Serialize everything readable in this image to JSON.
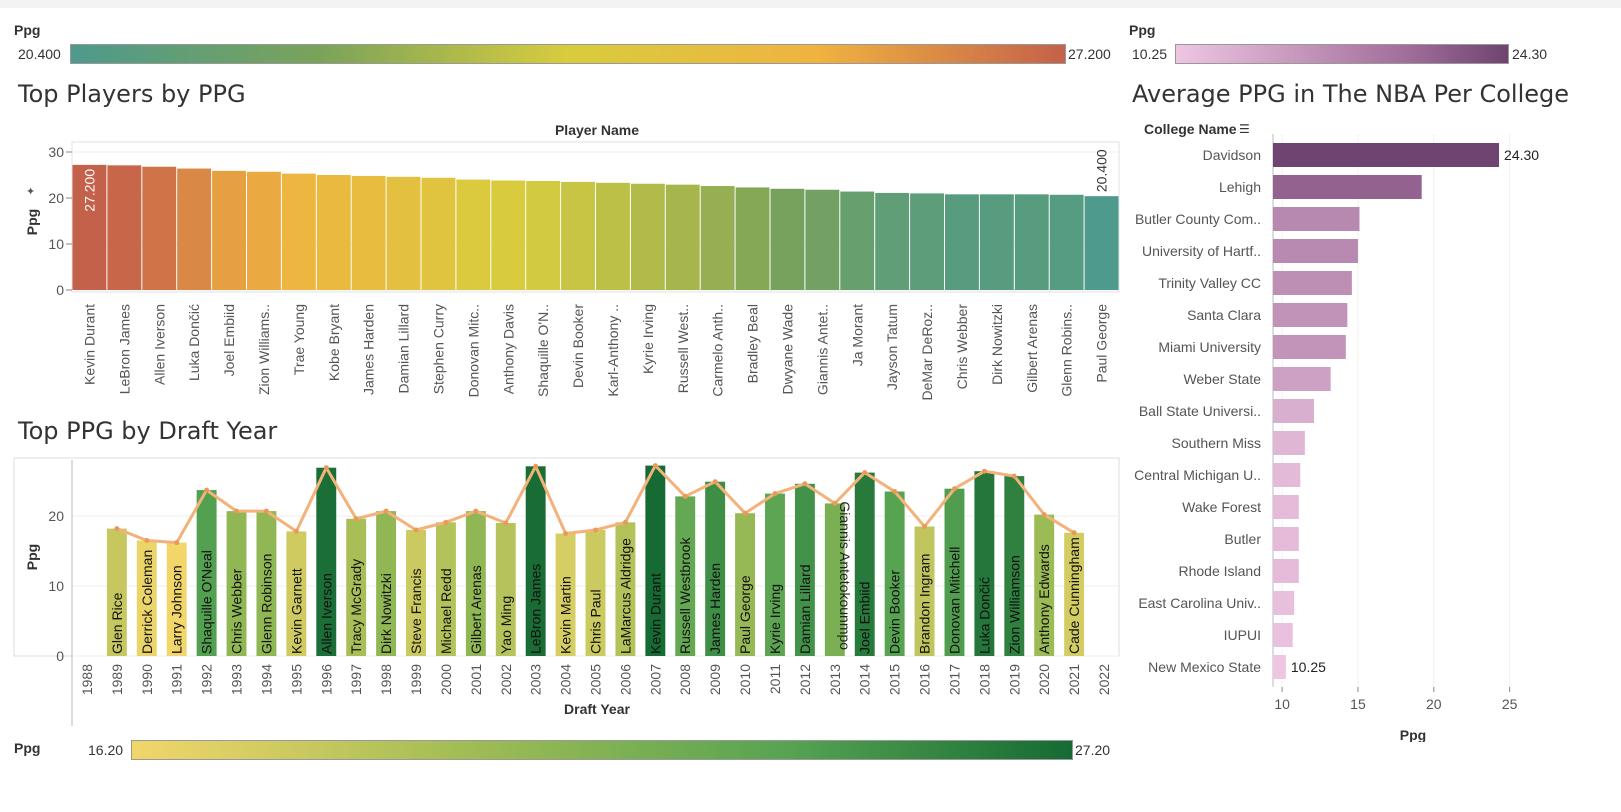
{
  "legends": {
    "players": {
      "label": "Ppg",
      "min": "20.400",
      "max": "27.200"
    },
    "colleges": {
      "label": "Ppg",
      "min": "10.25",
      "max": "24.30"
    },
    "draft": {
      "label": "Ppg",
      "min": "16.20",
      "max": "27.20"
    }
  },
  "chart_data": [
    {
      "id": "players",
      "type": "bar",
      "title": "Top Players by PPG",
      "xlabel": "Player Name",
      "ylabel": "Ppg",
      "ylim": [
        0,
        30
      ],
      "yticks": [
        0,
        10,
        20,
        30
      ],
      "categories": [
        "Kevin Durant",
        "LeBron James",
        "Allen Iverson",
        "Luka Dončić",
        "Joel Embiid",
        "Zion Williams..",
        "Trae Young",
        "Kobe Bryant",
        "James Harden",
        "Damian Lillard",
        "Stephen Curry",
        "Donovan Mitc..",
        "Anthony Davis",
        "Shaquille O'N..",
        "Devin Booker",
        "Karl-Anthony ..",
        "Kyrie Irving",
        "Russell West..",
        "Carmelo Anth..",
        "Bradley Beal",
        "Dwyane Wade",
        "Giannis Antet..",
        "Ja Morant",
        "Jayson Tatum",
        "DeMar DeRoz..",
        "Chris Webber",
        "Dirk Nowitzki",
        "Gilbert Arenas",
        "Glenn Robins..",
        "Paul George"
      ],
      "values": [
        27.2,
        27.1,
        26.8,
        26.4,
        25.9,
        25.7,
        25.3,
        25.0,
        24.8,
        24.6,
        24.4,
        24.0,
        23.8,
        23.7,
        23.5,
        23.3,
        23.1,
        22.9,
        22.6,
        22.3,
        22.0,
        21.8,
        21.4,
        21.1,
        21.0,
        20.8,
        20.8,
        20.8,
        20.7,
        20.4
      ],
      "data_labels": {
        "0": "27.200",
        "29": "20.400"
      }
    },
    {
      "id": "draft",
      "type": "bar",
      "title": "Top PPG by Draft Year",
      "xlabel": "Draft Year",
      "ylabel": "Ppg",
      "ylim": [
        0,
        28
      ],
      "yticks": [
        0,
        10,
        20
      ],
      "categories": [
        "1988",
        "1989",
        "1990",
        "1991",
        "1992",
        "1993",
        "1994",
        "1995",
        "1996",
        "1997",
        "1998",
        "1999",
        "2000",
        "2001",
        "2002",
        "2003",
        "2004",
        "2005",
        "2006",
        "2007",
        "2008",
        "2009",
        "2010",
        "2011",
        "2012",
        "2013",
        "2014",
        "2015",
        "2016",
        "2017",
        "2018",
        "2019",
        "2020",
        "2021",
        "2022"
      ],
      "values": [
        null,
        18.2,
        16.5,
        16.2,
        23.7,
        20.7,
        20.7,
        17.8,
        26.9,
        19.6,
        20.7,
        18.0,
        19.1,
        20.7,
        19.0,
        27.1,
        17.5,
        18.0,
        19.1,
        27.2,
        22.8,
        24.9,
        20.4,
        23.2,
        24.6,
        21.8,
        26.2,
        23.5,
        18.5,
        23.9,
        26.4,
        25.7,
        20.2,
        17.6,
        null
      ],
      "bar_labels": [
        "",
        "Glen Rice",
        "Derrick Coleman",
        "Larry Johnson",
        "Shaquille O'Neal",
        "Chris Webber",
        "Glenn Robinson",
        "Kevin Garnett",
        "Allen Iverson",
        "Tracy McGrady",
        "Dirk Nowitzki",
        "Steve Francis",
        "Michael Redd",
        "Gilbert Arenas",
        "Yao Ming",
        "LeBron James",
        "Kevin Martin",
        "Chris Paul",
        "LaMarcus Aldridge",
        "Kevin Durant",
        "Russell Westbrook",
        "James Harden",
        "Paul George",
        "Kyrie Irving",
        "Damian Lillard",
        "Giannis Antetokounmpo",
        "Joel Embiid",
        "Devin Booker",
        "Brandon Ingram",
        "Donovan Mitchell",
        "Luka Dončić",
        "Zion Williamson",
        "Anthony Edwards",
        "Cade Cunningham",
        ""
      ],
      "line": "trend of Ppg across draft years"
    },
    {
      "id": "colleges",
      "type": "bar",
      "orientation": "horizontal",
      "title": "Average PPG in The NBA Per College",
      "ylabel": "College Name",
      "xlabel": "Ppg",
      "xlim": [
        9.4,
        27
      ],
      "xticks": [
        10,
        15,
        20,
        25
      ],
      "categories": [
        "Davidson",
        "Lehigh",
        "Butler County Com..",
        "University of Hartf..",
        "Trinity Valley CC",
        "Santa Clara",
        "Miami University",
        "Weber State",
        "Ball State Universi..",
        "Southern Miss",
        "Central Michigan U..",
        "Wake Forest",
        "Butler",
        "Rhode Island",
        "East Carolina Univ..",
        "IUPUI",
        "New Mexico State"
      ],
      "values": [
        24.3,
        19.2,
        15.1,
        15.0,
        14.6,
        14.3,
        14.2,
        13.2,
        12.1,
        11.5,
        11.2,
        11.1,
        11.1,
        11.1,
        10.8,
        10.7,
        10.25
      ],
      "data_labels": {
        "0": "24.30",
        "16": "10.25"
      }
    }
  ],
  "colors": {
    "players_scale": [
      "#4e9a8c",
      "#7aa35a",
      "#d8cc3e",
      "#f0b340",
      "#c4614a"
    ],
    "draft_scale": [
      "#f2d66a",
      "#a2bd55",
      "#56a352",
      "#166a33"
    ],
    "college_scale": [
      "#eec6e2",
      "#a06d99",
      "#6f4470"
    ],
    "trend_line": "#f2b27a"
  }
}
